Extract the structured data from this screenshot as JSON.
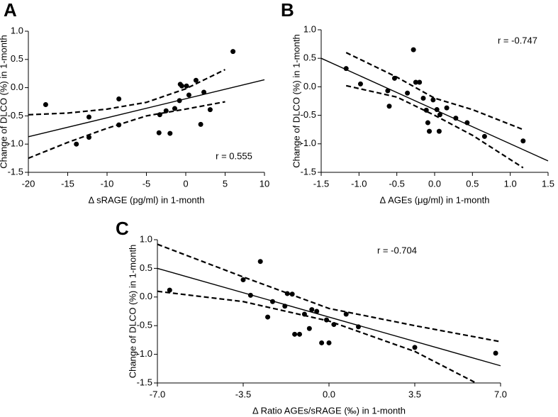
{
  "chart_data": [
    {
      "type": "scatter",
      "panel_label": "A",
      "xlabel": "Δ sRAGE (pg/ml) in 1-month",
      "ylabel": "Change of DLCO (%) in 1-month",
      "annotation": "r = 0.555",
      "color": "#000000",
      "x": [
        -17.8,
        -13.9,
        -12.3,
        -12.3,
        -8.5,
        -8.5,
        -3.3,
        -3.4,
        -2.5,
        -2.0,
        -1.4,
        -0.8,
        -0.7,
        -0.5,
        0.1,
        0.4,
        1.3,
        1.9,
        2.3,
        3.1,
        6.0
      ],
      "y": [
        -0.3,
        -1.0,
        -0.52,
        -0.88,
        -0.2,
        -0.66,
        -0.48,
        -0.8,
        -0.41,
        -0.81,
        -0.37,
        -0.23,
        0.06,
        0.03,
        0.03,
        -0.13,
        0.13,
        -0.65,
        -0.08,
        -0.39,
        0.64
      ],
      "xlim": [
        -20,
        10
      ],
      "ylim": [
        -1.5,
        1
      ],
      "xticks": [
        -20,
        -15,
        -10,
        -5,
        0,
        5,
        10
      ],
      "yticks": [
        -1.5,
        {
          "value": -1,
          "label": "-1.0"
        },
        -0.5,
        {
          "value": 0,
          "label": "0.0"
        },
        0.5,
        {
          "value": 1,
          "label": "1.0"
        }
      ],
      "lines": [
        {
          "style": "solid",
          "x": [
            -20,
            10
          ],
          "y": [
            -0.87,
            0.14
          ]
        },
        {
          "style": "dashed",
          "x": [
            -20,
            -15,
            -10,
            -5,
            0,
            5
          ],
          "y": [
            -0.48,
            -0.45,
            -0.38,
            -0.26,
            -0.02,
            0.32
          ]
        },
        {
          "style": "dashed",
          "x": [
            -20,
            -15,
            -10,
            -5,
            0,
            5
          ],
          "y": [
            -1.25,
            -0.97,
            -0.72,
            -0.5,
            -0.38,
            -0.25
          ]
        }
      ]
    },
    {
      "type": "scatter",
      "panel_label": "B",
      "xlabel": "Δ AGEs (μg/ml) in 1-month",
      "ylabel": "Change of DLCO (%) in 1-month",
      "annotation": "r = -0.747",
      "color": "#000000",
      "x": [
        -1.17,
        -0.98,
        -0.53,
        -0.62,
        -0.6,
        -0.36,
        -0.28,
        -0.25,
        -0.2,
        -0.15,
        -0.11,
        -0.09,
        -0.07,
        -0.02,
        0.03,
        0.07,
        0.06,
        0.16,
        0.28,
        0.43,
        0.66,
        1.17
      ],
      "y": [
        0.32,
        0.05,
        0.15,
        -0.07,
        -0.34,
        -0.11,
        0.65,
        0.08,
        0.08,
        -0.2,
        -0.41,
        -0.63,
        -0.78,
        -0.23,
        -0.4,
        -0.49,
        -0.78,
        -0.37,
        -0.55,
        -0.63,
        -0.87,
        -0.95
      ],
      "xlim": [
        -1.5,
        1.5
      ],
      "ylim": [
        -1.5,
        1
      ],
      "xticks": [
        -1.5,
        {
          "value": -1,
          "label": "-1.0"
        },
        -0.5,
        {
          "value": 0,
          "label": "0.0"
        },
        0.5,
        {
          "value": 1,
          "label": "1.0"
        },
        1.5
      ],
      "yticks": [
        -1.5,
        {
          "value": -1,
          "label": "-1.0"
        },
        -0.5,
        {
          "value": 0,
          "label": "0.0"
        },
        0.5,
        {
          "value": 1,
          "label": "1.0"
        }
      ],
      "lines": [
        {
          "style": "solid",
          "x": [
            -1.5,
            1.5
          ],
          "y": [
            0.5,
            -1.3
          ]
        },
        {
          "style": "dashed",
          "x": [
            -1.17,
            -0.5,
            0,
            0.5,
            1.17
          ],
          "y": [
            0.6,
            0.17,
            -0.2,
            -0.4,
            -0.75
          ]
        },
        {
          "style": "dashed",
          "x": [
            -1.17,
            -0.5,
            0,
            0.5,
            1.17
          ],
          "y": [
            0.02,
            -0.18,
            -0.5,
            -0.85,
            -1.42
          ]
        }
      ]
    },
    {
      "type": "scatter",
      "panel_label": "C",
      "xlabel": "Δ Ratio AGEs/sRAGE (‰) in 1-month",
      "ylabel": "Change of DLCO (%) in 1-month",
      "annotation": "r = -0.704",
      "color": "#000000",
      "x": [
        -6.5,
        -3.5,
        -3.2,
        -2.8,
        -2.5,
        -2.3,
        -1.8,
        -1.7,
        -1.5,
        -1.4,
        -1.2,
        -1.0,
        -0.8,
        -0.7,
        -0.5,
        -0.3,
        -0.1,
        0.0,
        0.2,
        0.7,
        1.2,
        3.5,
        6.8
      ],
      "y": [
        0.12,
        0.3,
        0.03,
        0.62,
        -0.35,
        -0.08,
        -0.16,
        0.06,
        0.05,
        -0.65,
        -0.65,
        -0.3,
        -0.55,
        -0.22,
        -0.25,
        -0.8,
        -0.4,
        -0.8,
        -0.48,
        -0.3,
        -0.52,
        -0.88,
        -0.98
      ],
      "xlim": [
        -7,
        7
      ],
      "ylim": [
        -1.5,
        1
      ],
      "xticks": [
        {
          "value": -7,
          "label": "-7.0"
        },
        -3.5,
        {
          "value": 0,
          "label": "0.0"
        },
        3.5,
        {
          "value": 7,
          "label": "7.0"
        }
      ],
      "yticks": [
        -1.5,
        {
          "value": -1,
          "label": "-1.0"
        },
        -0.5,
        {
          "value": 0,
          "label": "0.0"
        },
        0.5,
        {
          "value": 1,
          "label": "1.0"
        }
      ],
      "lines": [
        {
          "style": "solid",
          "x": [
            -7,
            7
          ],
          "y": [
            0.5,
            -1.2
          ]
        },
        {
          "style": "dashed",
          "x": [
            -7,
            -3.5,
            0,
            3.5,
            7
          ],
          "y": [
            0.92,
            0.35,
            -0.2,
            -0.5,
            -0.78
          ]
        },
        {
          "style": "dashed",
          "x": [
            -7,
            -3.5,
            0,
            3.5,
            6
          ],
          "y": [
            0.1,
            -0.08,
            -0.42,
            -0.95,
            -1.5
          ]
        }
      ]
    }
  ]
}
